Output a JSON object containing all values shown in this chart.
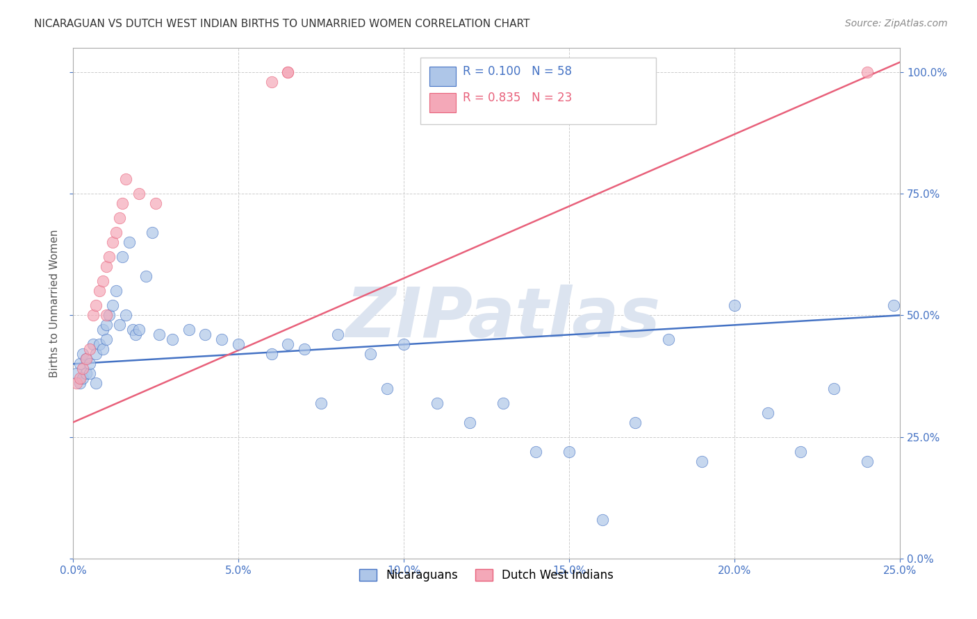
{
  "title": "NICARAGUAN VS DUTCH WEST INDIAN BIRTHS TO UNMARRIED WOMEN CORRELATION CHART",
  "source": "Source: ZipAtlas.com",
  "ylabel": "Births to Unmarried Women",
  "legend_label1": "Nicaraguans",
  "legend_label2": "Dutch West Indians",
  "r1": "R = 0.100",
  "n1": "N = 58",
  "r2": "R = 0.835",
  "n2": "N = 23",
  "color_blue": "#aec6e8",
  "color_pink": "#f4a8b8",
  "line_blue": "#4472c4",
  "line_pink": "#e8607a",
  "watermark": "ZIPatlas",
  "watermark_color": "#dce4f0",
  "xlim": [
    0.0,
    0.25
  ],
  "ylim": [
    0.0,
    1.05
  ],
  "xticks": [
    0.0,
    0.05,
    0.1,
    0.15,
    0.2,
    0.25
  ],
  "yticks": [
    0.0,
    0.25,
    0.5,
    0.75,
    1.0
  ],
  "blue_x": [
    0.001,
    0.002,
    0.002,
    0.003,
    0.003,
    0.004,
    0.004,
    0.005,
    0.005,
    0.006,
    0.007,
    0.007,
    0.008,
    0.009,
    0.009,
    0.01,
    0.01,
    0.011,
    0.012,
    0.013,
    0.014,
    0.015,
    0.016,
    0.017,
    0.018,
    0.019,
    0.02,
    0.022,
    0.024,
    0.026,
    0.03,
    0.035,
    0.04,
    0.045,
    0.05,
    0.06,
    0.065,
    0.07,
    0.075,
    0.08,
    0.09,
    0.095,
    0.1,
    0.11,
    0.12,
    0.13,
    0.14,
    0.15,
    0.16,
    0.17,
    0.18,
    0.19,
    0.2,
    0.21,
    0.22,
    0.23,
    0.24,
    0.248
  ],
  "blue_y": [
    0.38,
    0.36,
    0.4,
    0.37,
    0.42,
    0.38,
    0.41,
    0.38,
    0.4,
    0.44,
    0.36,
    0.42,
    0.44,
    0.43,
    0.47,
    0.45,
    0.48,
    0.5,
    0.52,
    0.55,
    0.48,
    0.62,
    0.5,
    0.65,
    0.47,
    0.46,
    0.47,
    0.58,
    0.67,
    0.46,
    0.45,
    0.47,
    0.46,
    0.45,
    0.44,
    0.42,
    0.44,
    0.43,
    0.32,
    0.46,
    0.42,
    0.35,
    0.44,
    0.32,
    0.28,
    0.32,
    0.22,
    0.22,
    0.08,
    0.28,
    0.45,
    0.2,
    0.52,
    0.3,
    0.22,
    0.35,
    0.2,
    0.52
  ],
  "pink_x": [
    0.001,
    0.002,
    0.003,
    0.004,
    0.005,
    0.006,
    0.007,
    0.008,
    0.009,
    0.01,
    0.01,
    0.011,
    0.012,
    0.013,
    0.014,
    0.015,
    0.016,
    0.02,
    0.025,
    0.06,
    0.065,
    0.065,
    0.24
  ],
  "pink_y": [
    0.36,
    0.37,
    0.39,
    0.41,
    0.43,
    0.5,
    0.52,
    0.55,
    0.57,
    0.5,
    0.6,
    0.62,
    0.65,
    0.67,
    0.7,
    0.73,
    0.78,
    0.75,
    0.73,
    0.98,
    1.0,
    1.0,
    1.0
  ],
  "blue_line_x": [
    0.0,
    0.25
  ],
  "blue_line_y": [
    0.4,
    0.5
  ],
  "pink_line_x": [
    0.0,
    0.25
  ],
  "pink_line_y": [
    0.28,
    1.02
  ]
}
